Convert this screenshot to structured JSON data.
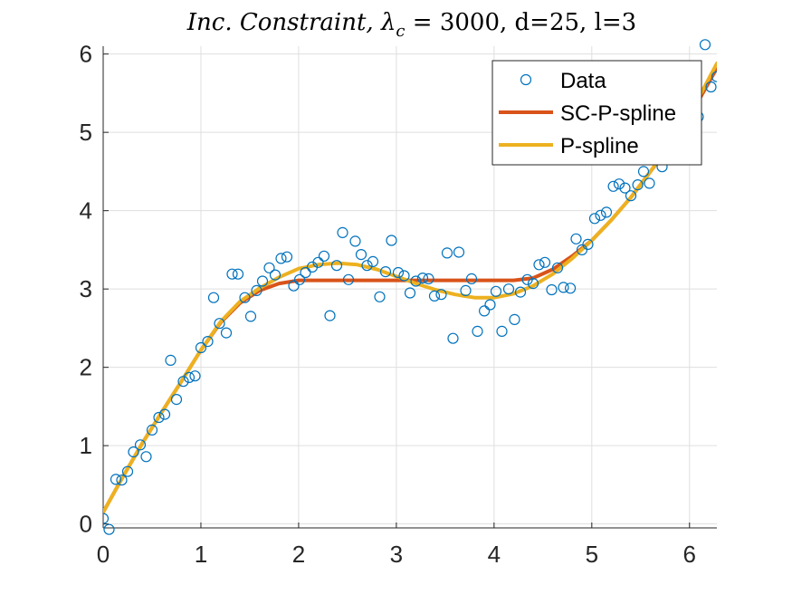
{
  "chart_data": {
    "type": "line",
    "title": "Inc. Constraint, λc = 3000, d=25, l=3",
    "title_parts": {
      "main": "Inc. Constraint, ",
      "lambda": "λ",
      "subscript": "c",
      "rest": " = 3000, d=25, l=3"
    },
    "xlabel": "",
    "ylabel": "",
    "xlim": [
      0,
      6.28
    ],
    "ylim": [
      -0.05,
      6.1
    ],
    "xticks": [
      0,
      1,
      2,
      3,
      4,
      5,
      6
    ],
    "yticks": [
      0,
      1,
      2,
      3,
      4,
      5,
      6
    ],
    "grid": true,
    "legend": {
      "placement": "top-right",
      "entries": [
        "Data",
        "SC-P-spline",
        "P-spline"
      ]
    },
    "colors": {
      "data": "#0072BD",
      "sc_p_spline": "#D95319",
      "p_spline": "#EDB120"
    },
    "series": [
      {
        "name": "Data",
        "style": "markers",
        "x": [
          0.0,
          0.06,
          0.13,
          0.19,
          0.25,
          0.31,
          0.38,
          0.44,
          0.5,
          0.57,
          0.63,
          0.69,
          0.75,
          0.82,
          0.88,
          0.94,
          1.0,
          1.07,
          1.13,
          1.19,
          1.26,
          1.32,
          1.38,
          1.45,
          1.51,
          1.57,
          1.63,
          1.7,
          1.76,
          1.82,
          1.88,
          1.95,
          2.01,
          2.07,
          2.14,
          2.2,
          2.26,
          2.32,
          2.39,
          2.45,
          2.51,
          2.58,
          2.64,
          2.7,
          2.76,
          2.83,
          2.89,
          2.95,
          3.02,
          3.08,
          3.14,
          3.2,
          3.27,
          3.33,
          3.39,
          3.46,
          3.52,
          3.58,
          3.64,
          3.71,
          3.77,
          3.83,
          3.9,
          3.96,
          4.02,
          4.08,
          4.15,
          4.21,
          4.27,
          4.34,
          4.4,
          4.46,
          4.52,
          4.59,
          4.65,
          4.71,
          4.78,
          4.84,
          4.9,
          4.96,
          5.03,
          5.09,
          5.15,
          5.22,
          5.28,
          5.34,
          5.4,
          5.47,
          5.53,
          5.59,
          5.65,
          5.72,
          5.78,
          5.84,
          5.91,
          5.97,
          6.03,
          6.09,
          6.16,
          6.22,
          6.28
        ],
        "y": [
          0.07,
          -0.07,
          0.57,
          0.56,
          0.67,
          0.92,
          1.01,
          0.86,
          1.2,
          1.36,
          1.4,
          2.09,
          1.59,
          1.82,
          1.87,
          1.89,
          2.25,
          2.33,
          2.89,
          2.56,
          2.44,
          3.19,
          3.19,
          2.89,
          2.65,
          2.98,
          3.1,
          3.27,
          3.18,
          3.39,
          3.41,
          3.04,
          3.12,
          3.21,
          3.28,
          3.34,
          3.42,
          2.66,
          3.3,
          3.72,
          3.12,
          3.61,
          3.44,
          3.3,
          3.35,
          2.9,
          3.22,
          3.62,
          3.21,
          3.17,
          2.95,
          3.1,
          3.14,
          3.13,
          2.91,
          2.93,
          3.46,
          2.37,
          3.47,
          2.98,
          3.13,
          2.46,
          2.72,
          2.8,
          2.97,
          2.46,
          3.0,
          2.61,
          2.96,
          3.12,
          3.07,
          3.31,
          3.34,
          2.99,
          3.27,
          3.02,
          3.01,
          3.64,
          3.5,
          3.57,
          3.9,
          3.94,
          3.98,
          4.31,
          4.34,
          4.29,
          4.19,
          4.33,
          4.5,
          4.35,
          4.7,
          4.56,
          4.96,
          5.04,
          5.23,
          4.91,
          5.1,
          5.2,
          6.12,
          5.58,
          5.71
        ]
      },
      {
        "name": "SC-P-spline",
        "style": "line",
        "x": [
          0.0,
          0.2,
          0.4,
          0.6,
          0.8,
          1.0,
          1.2,
          1.4,
          1.6,
          1.8,
          2.0,
          2.2,
          2.4,
          2.6,
          2.8,
          3.0,
          3.2,
          3.4,
          3.6,
          3.8,
          4.0,
          4.2,
          4.4,
          4.6,
          4.8,
          5.0,
          5.2,
          5.4,
          5.6,
          5.8,
          6.0,
          6.28
        ],
        "y": [
          0.15,
          0.6,
          1.03,
          1.43,
          1.82,
          2.22,
          2.57,
          2.82,
          2.98,
          3.07,
          3.11,
          3.11,
          3.11,
          3.11,
          3.11,
          3.11,
          3.11,
          3.11,
          3.11,
          3.11,
          3.11,
          3.11,
          3.14,
          3.25,
          3.42,
          3.62,
          3.88,
          4.17,
          4.5,
          4.83,
          5.2,
          5.82
        ]
      },
      {
        "name": "P-spline",
        "style": "line",
        "x": [
          0.0,
          0.2,
          0.4,
          0.6,
          0.8,
          1.0,
          1.2,
          1.4,
          1.6,
          1.8,
          2.0,
          2.2,
          2.4,
          2.6,
          2.8,
          3.0,
          3.2,
          3.4,
          3.6,
          3.8,
          4.0,
          4.2,
          4.4,
          4.6,
          4.8,
          5.0,
          5.2,
          5.4,
          5.6,
          5.8,
          6.0,
          6.28
        ],
        "y": [
          0.15,
          0.6,
          1.03,
          1.43,
          1.82,
          2.22,
          2.58,
          2.84,
          3.01,
          3.15,
          3.26,
          3.31,
          3.33,
          3.31,
          3.25,
          3.16,
          3.07,
          2.99,
          2.93,
          2.89,
          2.89,
          2.94,
          3.04,
          3.19,
          3.39,
          3.62,
          3.88,
          4.17,
          4.5,
          4.85,
          5.22,
          5.88
        ]
      }
    ]
  }
}
